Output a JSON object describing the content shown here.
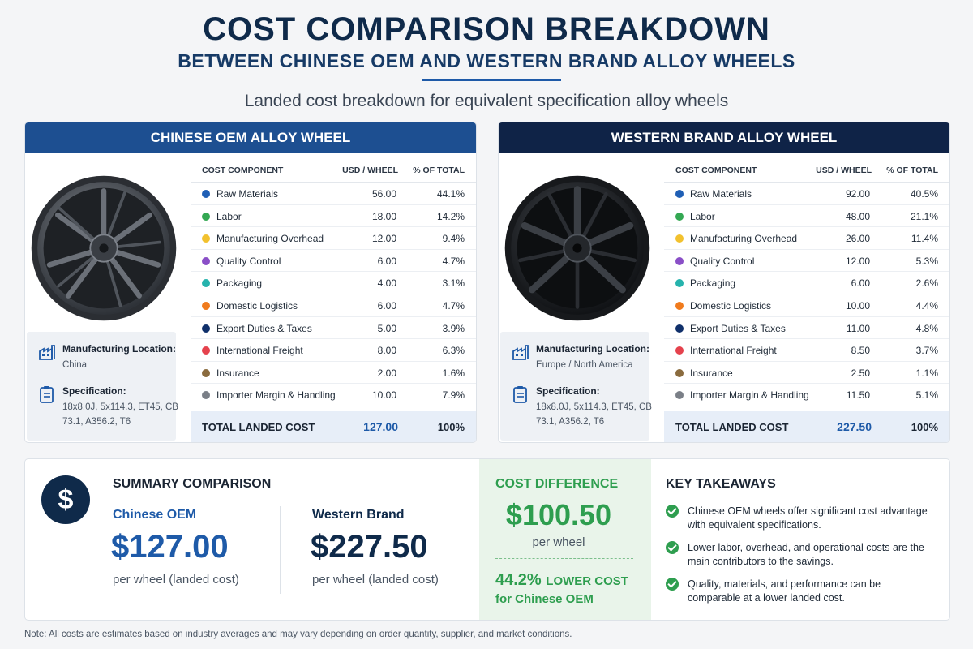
{
  "header": {
    "title": "COST COMPARISON BREAKDOWN",
    "subtitle": "BETWEEN CHINESE OEM AND WESTERN BRAND ALLOY WHEELS",
    "tagline": "Landed cost breakdown for equivalent specification alloy wheels"
  },
  "table_headers": {
    "component": "COST COMPONENT",
    "usd": "USD / WHEEL",
    "pct": "% OF TOTAL"
  },
  "component_colors": [
    "#1f5fb5",
    "#34a853",
    "#f2c12e",
    "#8a4fc7",
    "#26b3ad",
    "#f07b1d",
    "#10306b",
    "#e5424d",
    "#8a6b3e",
    "#7a7f87"
  ],
  "panels": {
    "chinese": {
      "title": "CHINESE OEM ALLOY WHEEL",
      "location_label": "Manufacturing Location:",
      "location_value": "China",
      "spec_label": "Specification:",
      "spec_value": "18x8.0J, 5x114.3, ET45, CB 73.1, A356.2, T6",
      "rows": [
        {
          "name": "Raw Materials",
          "usd": "56.00",
          "pct": "44.1%"
        },
        {
          "name": "Labor",
          "usd": "18.00",
          "pct": "14.2%"
        },
        {
          "name": "Manufacturing Overhead",
          "usd": "12.00",
          "pct": "9.4%"
        },
        {
          "name": "Quality Control",
          "usd": "6.00",
          "pct": "4.7%"
        },
        {
          "name": "Packaging",
          "usd": "4.00",
          "pct": "3.1%"
        },
        {
          "name": "Domestic Logistics",
          "usd": "6.00",
          "pct": "4.7%"
        },
        {
          "name": "Export Duties & Taxes",
          "usd": "5.00",
          "pct": "3.9%"
        },
        {
          "name": "International Freight",
          "usd": "8.00",
          "pct": "6.3%"
        },
        {
          "name": "Insurance",
          "usd": "2.00",
          "pct": "1.6%"
        },
        {
          "name": "Importer Margin & Handling",
          "usd": "10.00",
          "pct": "7.9%"
        }
      ],
      "total_label": "TOTAL LANDED COST",
      "total_usd": "127.00",
      "total_pct": "100%"
    },
    "western": {
      "title": "WESTERN BRAND ALLOY WHEEL",
      "location_label": "Manufacturing Location:",
      "location_value": "Europe / North America",
      "spec_label": "Specification:",
      "spec_value": "18x8.0J, 5x114.3, ET45, CB 73.1, A356.2, T6",
      "rows": [
        {
          "name": "Raw Materials",
          "usd": "92.00",
          "pct": "40.5%"
        },
        {
          "name": "Labor",
          "usd": "48.00",
          "pct": "21.1%"
        },
        {
          "name": "Manufacturing Overhead",
          "usd": "26.00",
          "pct": "11.4%"
        },
        {
          "name": "Quality Control",
          "usd": "12.00",
          "pct": "5.3%"
        },
        {
          "name": "Packaging",
          "usd": "6.00",
          "pct": "2.6%"
        },
        {
          "name": "Domestic Logistics",
          "usd": "10.00",
          "pct": "4.4%"
        },
        {
          "name": "Export Duties & Taxes",
          "usd": "11.00",
          "pct": "4.8%"
        },
        {
          "name": "International Freight",
          "usd": "8.50",
          "pct": "3.7%"
        },
        {
          "name": "Insurance",
          "usd": "2.50",
          "pct": "1.1%"
        },
        {
          "name": "Importer Margin & Handling",
          "usd": "11.50",
          "pct": "5.1%"
        }
      ],
      "total_label": "TOTAL LANDED COST",
      "total_usd": "227.50",
      "total_pct": "100%"
    }
  },
  "summary": {
    "icon_symbol": "$",
    "title": "SUMMARY COMPARISON",
    "chinese_label": "Chinese OEM",
    "chinese_price": "$127.00",
    "chinese_sub": "per wheel (landed cost)",
    "western_label": "Western Brand",
    "western_price": "$227.50",
    "western_sub": "per wheel (landed cost)",
    "diff_title": "COST DIFFERENCE",
    "diff_value": "$100.50",
    "diff_sub": "per wheel",
    "diff_pct": "44.2%",
    "diff_pct_label": "LOWER COST",
    "diff_for": "for Chinese OEM",
    "takeaways_title": "KEY TAKEAWAYS",
    "takeaways": [
      "Chinese OEM wheels offer significant cost advantage with equivalent specifications.",
      "Lower labor, overhead, and operational costs are the main contributors to the savings.",
      "Quality, materials, and performance can be comparable at a lower landed cost."
    ]
  },
  "colors": {
    "navy": "#0f2a4a",
    "blue": "#1e5aa8",
    "green": "#2e9e4f"
  },
  "note": "Note: All costs are estimates based on industry averages and may vary depending on order quantity, supplier, and market conditions."
}
